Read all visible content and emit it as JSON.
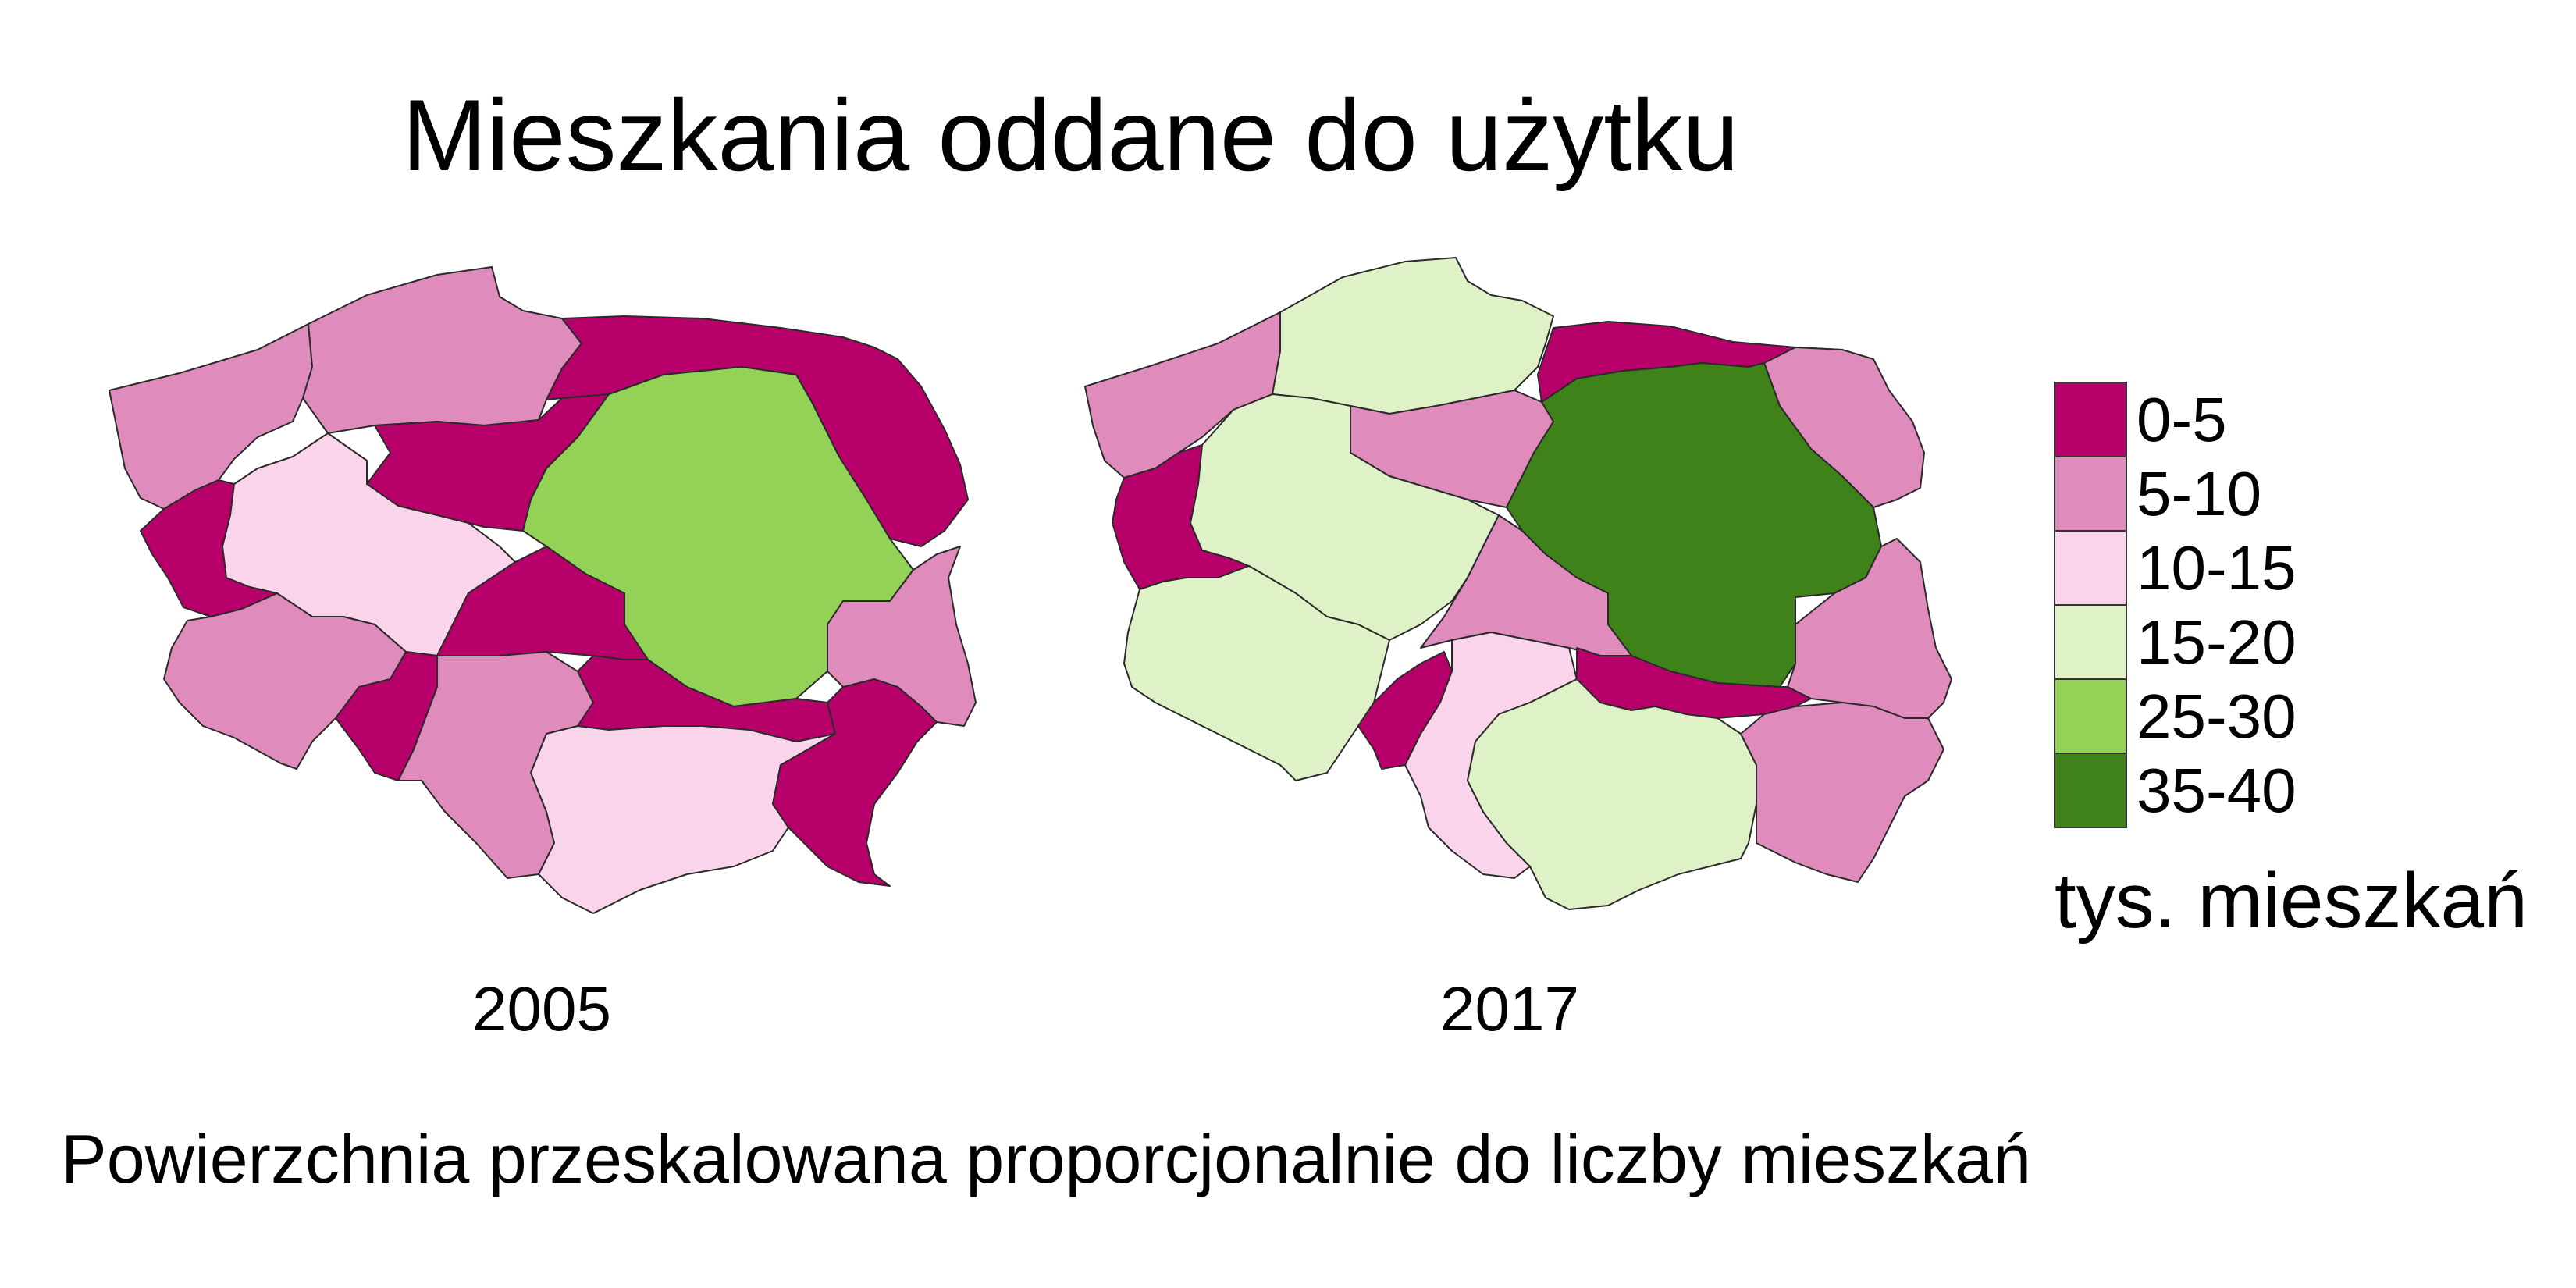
{
  "title": "Mieszkania oddane do użytku",
  "caption": "Powierzchnia przeskalowana proporcjonalnie do liczby mieszkań",
  "chart_data": {
    "type": "cartogram",
    "title": "Mieszkania oddane do użytku",
    "subtitle": "Powierzchnia przeskalowana proporcjonalnie do liczby mieszkań",
    "legend": {
      "title": "tys. mieszkań",
      "placement": "right",
      "classes": [
        {
          "label": "0-5",
          "color": "#B8006B"
        },
        {
          "label": "5-10",
          "color": "#DF8BBB"
        },
        {
          "label": "10-15",
          "color": "#FAD4EA"
        },
        {
          "label": "15-20",
          "color": "#DFF2C7"
        },
        {
          "label": "25-30",
          "color": "#93D157"
        },
        {
          "label": "35-40",
          "color": "#3F821A"
        }
      ]
    },
    "maps": [
      {
        "year": "2005"
      },
      {
        "year": "2017"
      }
    ]
  }
}
